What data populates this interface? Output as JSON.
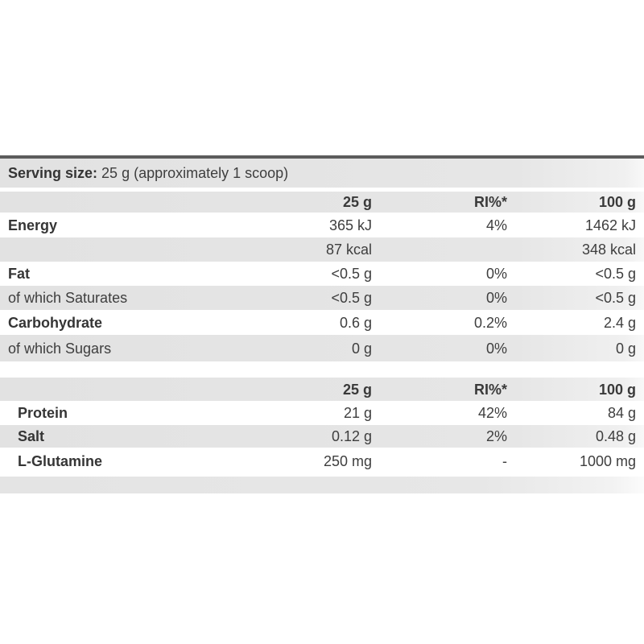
{
  "serving": {
    "bold": "Serving size:",
    "rest": " 25 g (approximately 1 scoop)"
  },
  "columns": {
    "col_serving": "25 g",
    "col_ri": "RI%*",
    "col_100g": "100 g"
  },
  "rows": [
    {
      "label": "Energy",
      "v25": "365 kJ",
      "ri": "4%",
      "v100": "1462 kJ"
    },
    {
      "label": "",
      "v25": "87 kcal",
      "ri": "",
      "v100": "348 kcal"
    },
    {
      "label": "Fat",
      "v25": "<0.5 g",
      "ri": "0%",
      "v100": "<0.5 g"
    },
    {
      "label": "of which Saturates",
      "v25": "<0.5 g",
      "ri": "0%",
      "v100": "<0.5 g"
    },
    {
      "label": "Carbohydrate",
      "v25": "0.6 g",
      "ri": "0.2%",
      "v100": "2.4 g"
    },
    {
      "label": "of which Sugars",
      "v25": "0 g",
      "ri": "0%",
      "v100": "0 g"
    },
    {
      "label": "Protein",
      "v25": "21 g",
      "ri": "42%",
      "v100": "84 g"
    },
    {
      "label": "Salt",
      "v25": "0.12 g",
      "ri": "2%",
      "v100": "0.48 g"
    },
    {
      "label": "L-Glutamine",
      "v25": "250 mg",
      "ri": "-",
      "v100": "1000 mg"
    }
  ],
  "colors": {
    "row_gray": "#e5e5e5",
    "top_border": "#5c5c5c",
    "text": "#3e3e3e",
    "background": "#ffffff"
  }
}
